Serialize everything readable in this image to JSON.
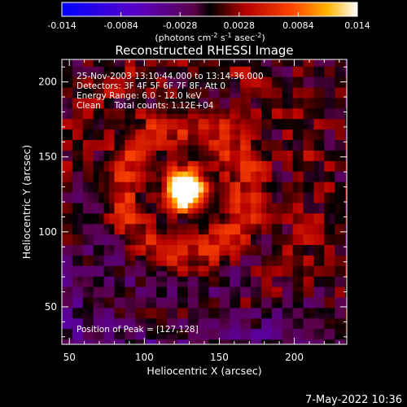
{
  "chart_data": {
    "type": "heatmap",
    "title": "Reconstructed RHESSI Image",
    "xlabel": "Heliocentric X (arcsec)",
    "ylabel": "Heliocentric Y (arcsec)",
    "xlim": [
      45,
      235
    ],
    "ylim": [
      25,
      215
    ],
    "xticks": [
      50,
      100,
      150,
      200
    ],
    "yticks": [
      50,
      100,
      150,
      200
    ],
    "colorbar": {
      "range": [
        -0.014,
        0.014
      ],
      "ticks": [
        "-0.014",
        "-0.0084",
        "-0.0028",
        "0.0028",
        "0.0084",
        "0.014"
      ],
      "unit_label": "(photons cm-2 s-1 asec-2)"
    },
    "annotations": [
      "25-Nov-2003 13:10:44.000 to 13:14:36.000",
      "Detectors: 3F 4F 5F 6F 7F 8F, Att 0",
      "Energy Range: 6.0 - 12.0 keV",
      "Clean     Total counts: 1.12E+04"
    ],
    "peak_label": "Position of Peak = [127,128]",
    "peak": [
      127,
      128
    ],
    "peak_value": 0.014
  },
  "footer_date": "7-May-2022 10:36"
}
